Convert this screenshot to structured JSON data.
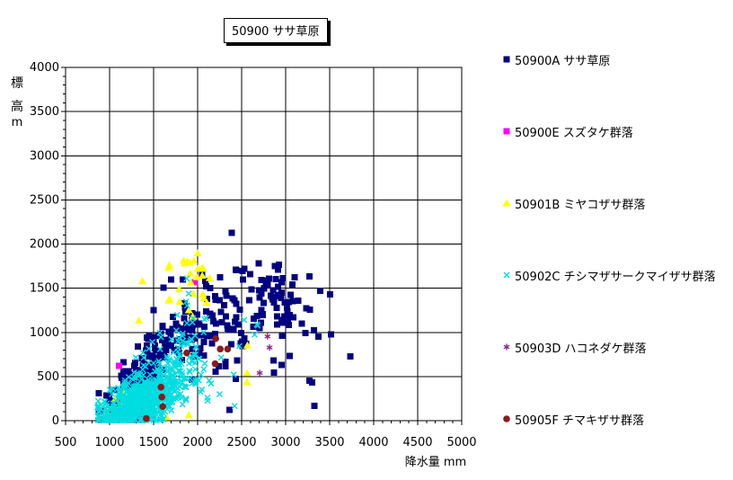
{
  "title": "50900 ササ草原",
  "x_axis": {
    "label": "降水量 mm",
    "min": 500,
    "max": 5000,
    "step": 500,
    "minor_step": 100
  },
  "y_axis": {
    "label": "標高m",
    "label_chars": [
      "標",
      "高",
      "m"
    ],
    "min": 0,
    "max": 4000,
    "step": 500,
    "minor_step": 100
  },
  "colors": {
    "background": "#FFFFFF",
    "grid": "#000000",
    "axis": "#000000",
    "text": "#000000",
    "title_box_border": "#000000",
    "title_box_shadow": "#000000"
  },
  "chart_data": {
    "type": "scatter",
    "title": "50900 ササ草原",
    "xlabel": "降水量 mm",
    "ylabel": "標高m",
    "xlim": [
      500,
      5000
    ],
    "ylim": [
      0,
      4000
    ],
    "x_tick_step": 500,
    "y_tick_step": 500,
    "minor_tick_step": 100,
    "grid": true,
    "legend_position": "right",
    "series": [
      {
        "id": "50900A",
        "label": "50900A ササ草原",
        "marker": "square",
        "color": "#000080",
        "points": [
          [
            2386,
            2125
          ],
          [
            3503,
            1429
          ],
          [
            3269,
            1632
          ],
          [
            3734,
            726
          ],
          [
            3327,
            166
          ],
          [
            3299,
            431
          ],
          [
            3269,
            455
          ],
          [
            2868,
            547
          ],
          [
            2953,
            631
          ],
          [
            3048,
            733
          ],
          [
            3371,
            954
          ],
          [
            3320,
            1021
          ],
          [
            3225,
            991
          ],
          [
            3184,
            1100
          ],
          [
            2504,
            896
          ],
          [
            2529,
            930
          ],
          [
            2552,
            869
          ],
          [
            2437,
            1704
          ],
          [
            2511,
            1694
          ],
          [
            2529,
            1721
          ],
          [
            2433,
            1711
          ],
          [
            2256,
            1622
          ],
          [
            2086,
            1581
          ],
          [
            2053,
            1660
          ],
          [
            2097,
            1524
          ],
          [
            1611,
            1507
          ],
          [
            2990,
            1340
          ],
          [
            3080,
            1352
          ],
          [
            3141,
            1360
          ],
          [
            2926,
            1768
          ],
          [
            2875,
            1751
          ],
          [
            2912,
            1711
          ],
          [
            2810,
            1609
          ],
          [
            2776,
            1575
          ],
          [
            2953,
            1565
          ],
          [
            2912,
            1517
          ],
          [
            3235,
            1270
          ],
          [
            3276,
            1259
          ],
          [
            2722,
            1252
          ],
          [
            2845,
            1398
          ],
          [
            2947,
            1388
          ],
          [
            2902,
            1090
          ],
          [
            2953,
            1140
          ],
          [
            2742,
            1194
          ],
          [
            3048,
            1194
          ],
          [
            3089,
            1168
          ],
          [
            3028,
            1133
          ],
          [
            3038,
            1082
          ],
          [
            2674,
            1184
          ],
          [
            2362,
            122
          ],
          [
            1940,
            465
          ],
          [
            2205,
            553
          ],
          [
            2961,
            964
          ],
          [
            2318,
            665
          ],
          [
            2861,
            682
          ],
          [
            2433,
            471
          ]
        ],
        "clusters": [
          {
            "n": 230,
            "cx": 1280,
            "cy": 330,
            "sdx": 150,
            "sdy": 190,
            "corr": 0.6,
            "xmin": 880,
            "xmax": 2350,
            "ymin": 10,
            "ymax": 1000
          },
          {
            "n": 35,
            "cx": 1600,
            "cy": 820,
            "sdx": 200,
            "sdy": 170,
            "corr": 0.2,
            "xmin": 1000,
            "xmax": 2400,
            "ymin": 120,
            "ymax": 1100
          },
          {
            "n": 90,
            "cx": 2150,
            "cy": 1090,
            "sdx": 300,
            "sdy": 220,
            "corr": 0.1,
            "xmin": 1500,
            "xmax": 3450,
            "ymin": 320,
            "ymax": 1600
          },
          {
            "n": 38,
            "cx": 2860,
            "cy": 1380,
            "sdx": 260,
            "sdy": 190,
            "corr": 0,
            "xmin": 2300,
            "xmax": 3600,
            "ymin": 900,
            "ymax": 1800
          }
        ]
      },
      {
        "id": "50900E",
        "label": "50900E スズタケ群落",
        "marker": "square",
        "color": "#FF00FF",
        "points": [
          [
            1105,
            620
          ],
          [
            1968,
            1565
          ]
        ],
        "clusters": []
      },
      {
        "id": "50901B",
        "label": "50901B ミヤコザサ群落",
        "marker": "triangle",
        "color": "#FFFF00",
        "points": [
          [
            1672,
            1734
          ],
          [
            1842,
            1813
          ],
          [
            1884,
            1800
          ],
          [
            1908,
            1790
          ],
          [
            2002,
            1897
          ],
          [
            2002,
            1721
          ],
          [
            2046,
            1721
          ],
          [
            1992,
            1626
          ],
          [
            1923,
            1565
          ],
          [
            1791,
            1490
          ],
          [
            1951,
            1439
          ],
          [
            2060,
            1429
          ],
          [
            1672,
            1361
          ],
          [
            1798,
            1347
          ],
          [
            2104,
            1337
          ],
          [
            1900,
            1252
          ],
          [
            1944,
            1178
          ],
          [
            1679,
            1762
          ],
          [
            2053,
            1643
          ],
          [
            1917,
            1667
          ],
          [
            2070,
            1388
          ],
          [
            1679,
            1378
          ],
          [
            2137,
            1616
          ],
          [
            2060,
            1728
          ],
          [
            1850,
            1782
          ],
          [
            1957,
            1810
          ],
          [
            1373,
            1581
          ],
          [
            1332,
            1133
          ],
          [
            2565,
            852
          ],
          [
            2562,
            540
          ],
          [
            2562,
            438
          ],
          [
            1067,
            251
          ],
          [
            970,
            102
          ],
          [
            1900,
            64
          ],
          [
            1240,
            180
          ],
          [
            1150,
            215
          ],
          [
            1050,
            140
          ],
          [
            982,
            60
          ],
          [
            1200,
            92
          ],
          [
            1300,
            240
          ],
          [
            1230,
            330
          ],
          [
            1160,
            320
          ],
          [
            1062,
            30
          ],
          [
            1420,
            58
          ],
          [
            1650,
            40
          ]
        ],
        "clusters": []
      },
      {
        "id": "50902C",
        "label": "50902C チシマザサークマイザサ群落",
        "marker": "x",
        "color": "#00DDE0",
        "points": [
          [
            2529,
            1140
          ],
          [
            2682,
            1076
          ],
          [
            2647,
            974
          ],
          [
            2674,
            1090
          ],
          [
            2474,
            845
          ],
          [
            2410,
            522
          ],
          [
            2114,
            227
          ],
          [
            1900,
            1439
          ],
          [
            1876,
            1609
          ],
          [
            1869,
            1347
          ],
          [
            1882,
            1303
          ],
          [
            1984,
            828
          ],
          [
            2152,
            420
          ],
          [
            2048,
            352
          ],
          [
            2250,
            300
          ],
          [
            1978,
            752
          ],
          [
            2082,
            648
          ],
          [
            2420,
            166
          ],
          [
            863,
            150
          ]
        ],
        "clusters": [
          {
            "n": 560,
            "cx": 1330,
            "cy": 200,
            "sdx": 230,
            "sdy": 150,
            "corr": 0.55,
            "xmin": 870,
            "xmax": 2350,
            "ymin": 6,
            "ymax": 800
          },
          {
            "n": 150,
            "cx": 1580,
            "cy": 430,
            "sdx": 210,
            "sdy": 170,
            "corr": 0.3,
            "xmin": 950,
            "xmax": 2300,
            "ymin": 15,
            "ymax": 900
          },
          {
            "n": 55,
            "cx": 1840,
            "cy": 760,
            "sdx": 160,
            "sdy": 230,
            "corr": 0.2,
            "xmin": 1300,
            "xmax": 2250,
            "ymin": 120,
            "ymax": 1450
          }
        ]
      },
      {
        "id": "50903D",
        "label": "50903D ハコネダケ群落",
        "marker": "asterisk",
        "color": "#882288",
        "points": [
          [
            2794,
            954
          ],
          [
            2817,
            828
          ],
          [
            2705,
            540
          ]
        ],
        "clusters": []
      },
      {
        "id": "50905F",
        "label": "50905F チマキザサ群落",
        "marker": "circle",
        "color": "#8B1A1A",
        "points": [
          [
            2206,
            930
          ],
          [
            2257,
            811
          ],
          [
            2341,
            811
          ],
          [
            1876,
            767
          ],
          [
            2199,
            645
          ],
          [
            1584,
            380
          ],
          [
            1594,
            268
          ],
          [
            1604,
            160
          ],
          [
            1417,
            25
          ]
        ],
        "clusters": []
      }
    ]
  }
}
